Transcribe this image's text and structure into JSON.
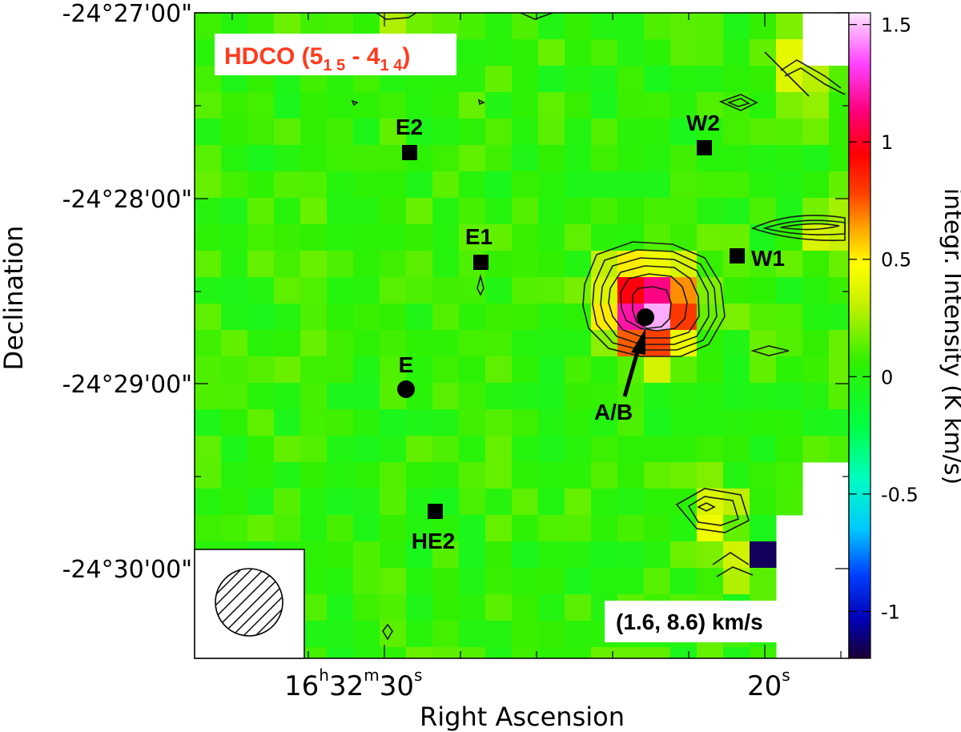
{
  "chart_data": {
    "type": "heatmap",
    "title_parts": {
      "molecule": "HDCO (5",
      "sub1": "1 5",
      "dash": " - 4",
      "sub2": "1 4",
      "close": ")"
    },
    "title_color": "#ff3b1f",
    "velocity_label": "(1.6, 8.6) km/s",
    "xlabel": "Right Ascension",
    "ylabel": "Declination",
    "colorbar_label": "integr. Intensity (K km/s)",
    "colorbar_range": [
      -1.2,
      1.55
    ],
    "colorbar_ticks": [
      {
        "value": 1.5,
        "label": "1.5"
      },
      {
        "value": 1,
        "label": "1"
      },
      {
        "value": 0.5,
        "label": "0.5"
      },
      {
        "value": 0,
        "label": "0"
      },
      {
        "value": -0.5,
        "label": "-0.5"
      },
      {
        "value": -1,
        "label": "-1"
      }
    ],
    "xtick_labels": [
      {
        "id": "ra-30",
        "h": "16",
        "hs": "h",
        "m": "32",
        "ms": "m",
        "s": "30",
        "ss": "s"
      },
      {
        "id": "ra-20",
        "s": "20",
        "ss": "s"
      }
    ],
    "ytick_labels": [
      "-24°27'00\"",
      "-24°28'00\"",
      "-24°29'00\"",
      "-24°30'00\""
    ],
    "sources": [
      {
        "label": "E2",
        "marker": "square"
      },
      {
        "label": "E1",
        "marker": "square"
      },
      {
        "label": "W2",
        "marker": "square"
      },
      {
        "label": "W1",
        "marker": "square"
      },
      {
        "label": "E",
        "marker": "circle"
      },
      {
        "label": "A/B",
        "marker": "circle"
      },
      {
        "label": "HE2",
        "marker": "square"
      }
    ],
    "peak": {
      "source": "A/B",
      "value": 1.45
    },
    "secondary_emission": [
      {
        "name": "east-edge-feature",
        "value": 0.55
      },
      {
        "name": "south-east-feature",
        "value": 0.45
      }
    ],
    "minimum": {
      "value": -1.15
    },
    "background_level": 0.05,
    "beam": "hatched circle"
  }
}
